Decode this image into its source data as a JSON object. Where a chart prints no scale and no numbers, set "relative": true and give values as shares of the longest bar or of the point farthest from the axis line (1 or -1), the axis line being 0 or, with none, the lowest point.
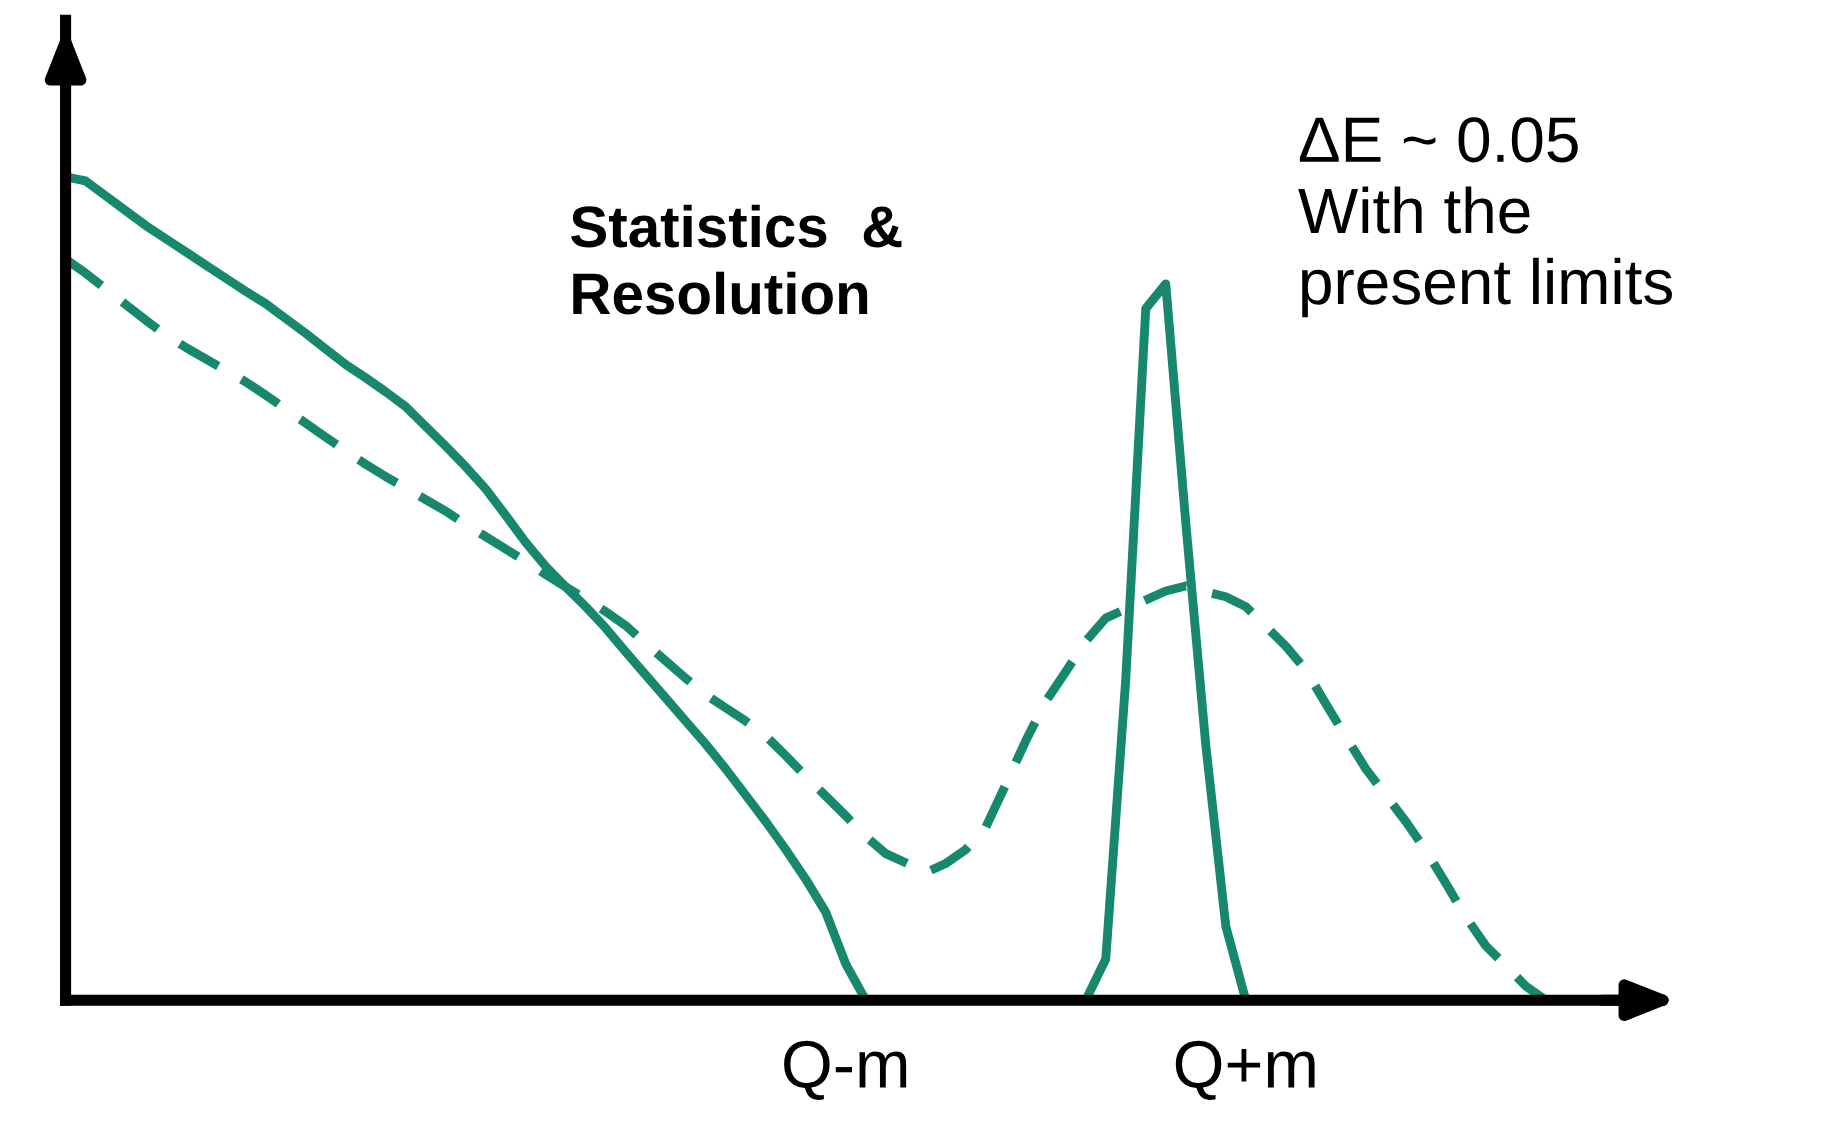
{
  "chart_data": {
    "type": "line",
    "relative": true,
    "tick_labels": "x",
    "grid": false,
    "legend": false,
    "categories": [
      null,
      null,
      null,
      null,
      null,
      null,
      null,
      null,
      null,
      null,
      null,
      null,
      null,
      null,
      null,
      null,
      null,
      null,
      null,
      null,
      null,
      null,
      null,
      null,
      null,
      null,
      null,
      null,
      null,
      null,
      null,
      null,
      null,
      null,
      null,
      null,
      null,
      null,
      null,
      "Q-m",
      null,
      null,
      null,
      null,
      null,
      null,
      null,
      null,
      null,
      null,
      null,
      null,
      null,
      null,
      null,
      null,
      null,
      null,
      null,
      "Q+m",
      null,
      null,
      null,
      null,
      null,
      null,
      null,
      null,
      null,
      null,
      null,
      null,
      null,
      null,
      null,
      null,
      null,
      null,
      null,
      null
    ],
    "series": [
      {
        "color": "#17876d",
        "line_style": "solid",
        "values": [
          1.0,
          0.995,
          0.977,
          0.959,
          0.941,
          0.925,
          0.909,
          0.893,
          0.877,
          0.861,
          0.846,
          0.828,
          0.81,
          0.791,
          0.772,
          0.756,
          0.739,
          0.721,
          0.697,
          0.673,
          0.648,
          0.621,
          0.589,
          0.556,
          0.527,
          0.502,
          0.478,
          0.452,
          0.423,
          0.395,
          0.367,
          0.339,
          0.311,
          0.281,
          0.249,
          0.217,
          0.183,
          0.147,
          0.107,
          0.044,
          0,
          null,
          null,
          null,
          null,
          null,
          null,
          null,
          null,
          null,
          null,
          0,
          0.05,
          0.39,
          0.84,
          0.87,
          0.58,
          0.31,
          0.09,
          0,
          null,
          null,
          null,
          null,
          null,
          null,
          null,
          null,
          null,
          null,
          null,
          null,
          null,
          null,
          null,
          null,
          null,
          null,
          null,
          null
        ]
      },
      {
        "color": "#17876d",
        "line_style": "dashed",
        "values": [
          0.9,
          0.883,
          0.864,
          0.845,
          0.826,
          0.808,
          0.793,
          0.779,
          0.765,
          0.751,
          0.735,
          0.718,
          0.701,
          0.684,
          0.667,
          0.651,
          0.636,
          0.622,
          0.608,
          0.594,
          0.578,
          0.563,
          0.548,
          0.533,
          0.517,
          0.502,
          0.487,
          0.472,
          0.455,
          0.433,
          0.412,
          0.391,
          0.371,
          0.355,
          0.339,
          0.321,
          0.297,
          0.272,
          0.248,
          0.224,
          0.199,
          0.178,
          0.167,
          0.155,
          0.166,
          0.183,
          0.21,
          0.262,
          0.315,
          0.363,
          0.399,
          0.436,
          0.464,
          0.475,
          0.486,
          0.497,
          0.503,
          0.496,
          0.49,
          0.478,
          0.454,
          0.43,
          0.401,
          0.36,
          0.32,
          0.281,
          0.249,
          0.217,
          0.182,
          0.142,
          0.101,
          0.066,
          0.042,
          0.017,
          0,
          null,
          null,
          null,
          null,
          null
        ]
      }
    ],
    "annotations": [
      "Statistics  &\nResolution",
      "ΔE ~ 0.05\nWith the\npresent limits"
    ]
  }
}
